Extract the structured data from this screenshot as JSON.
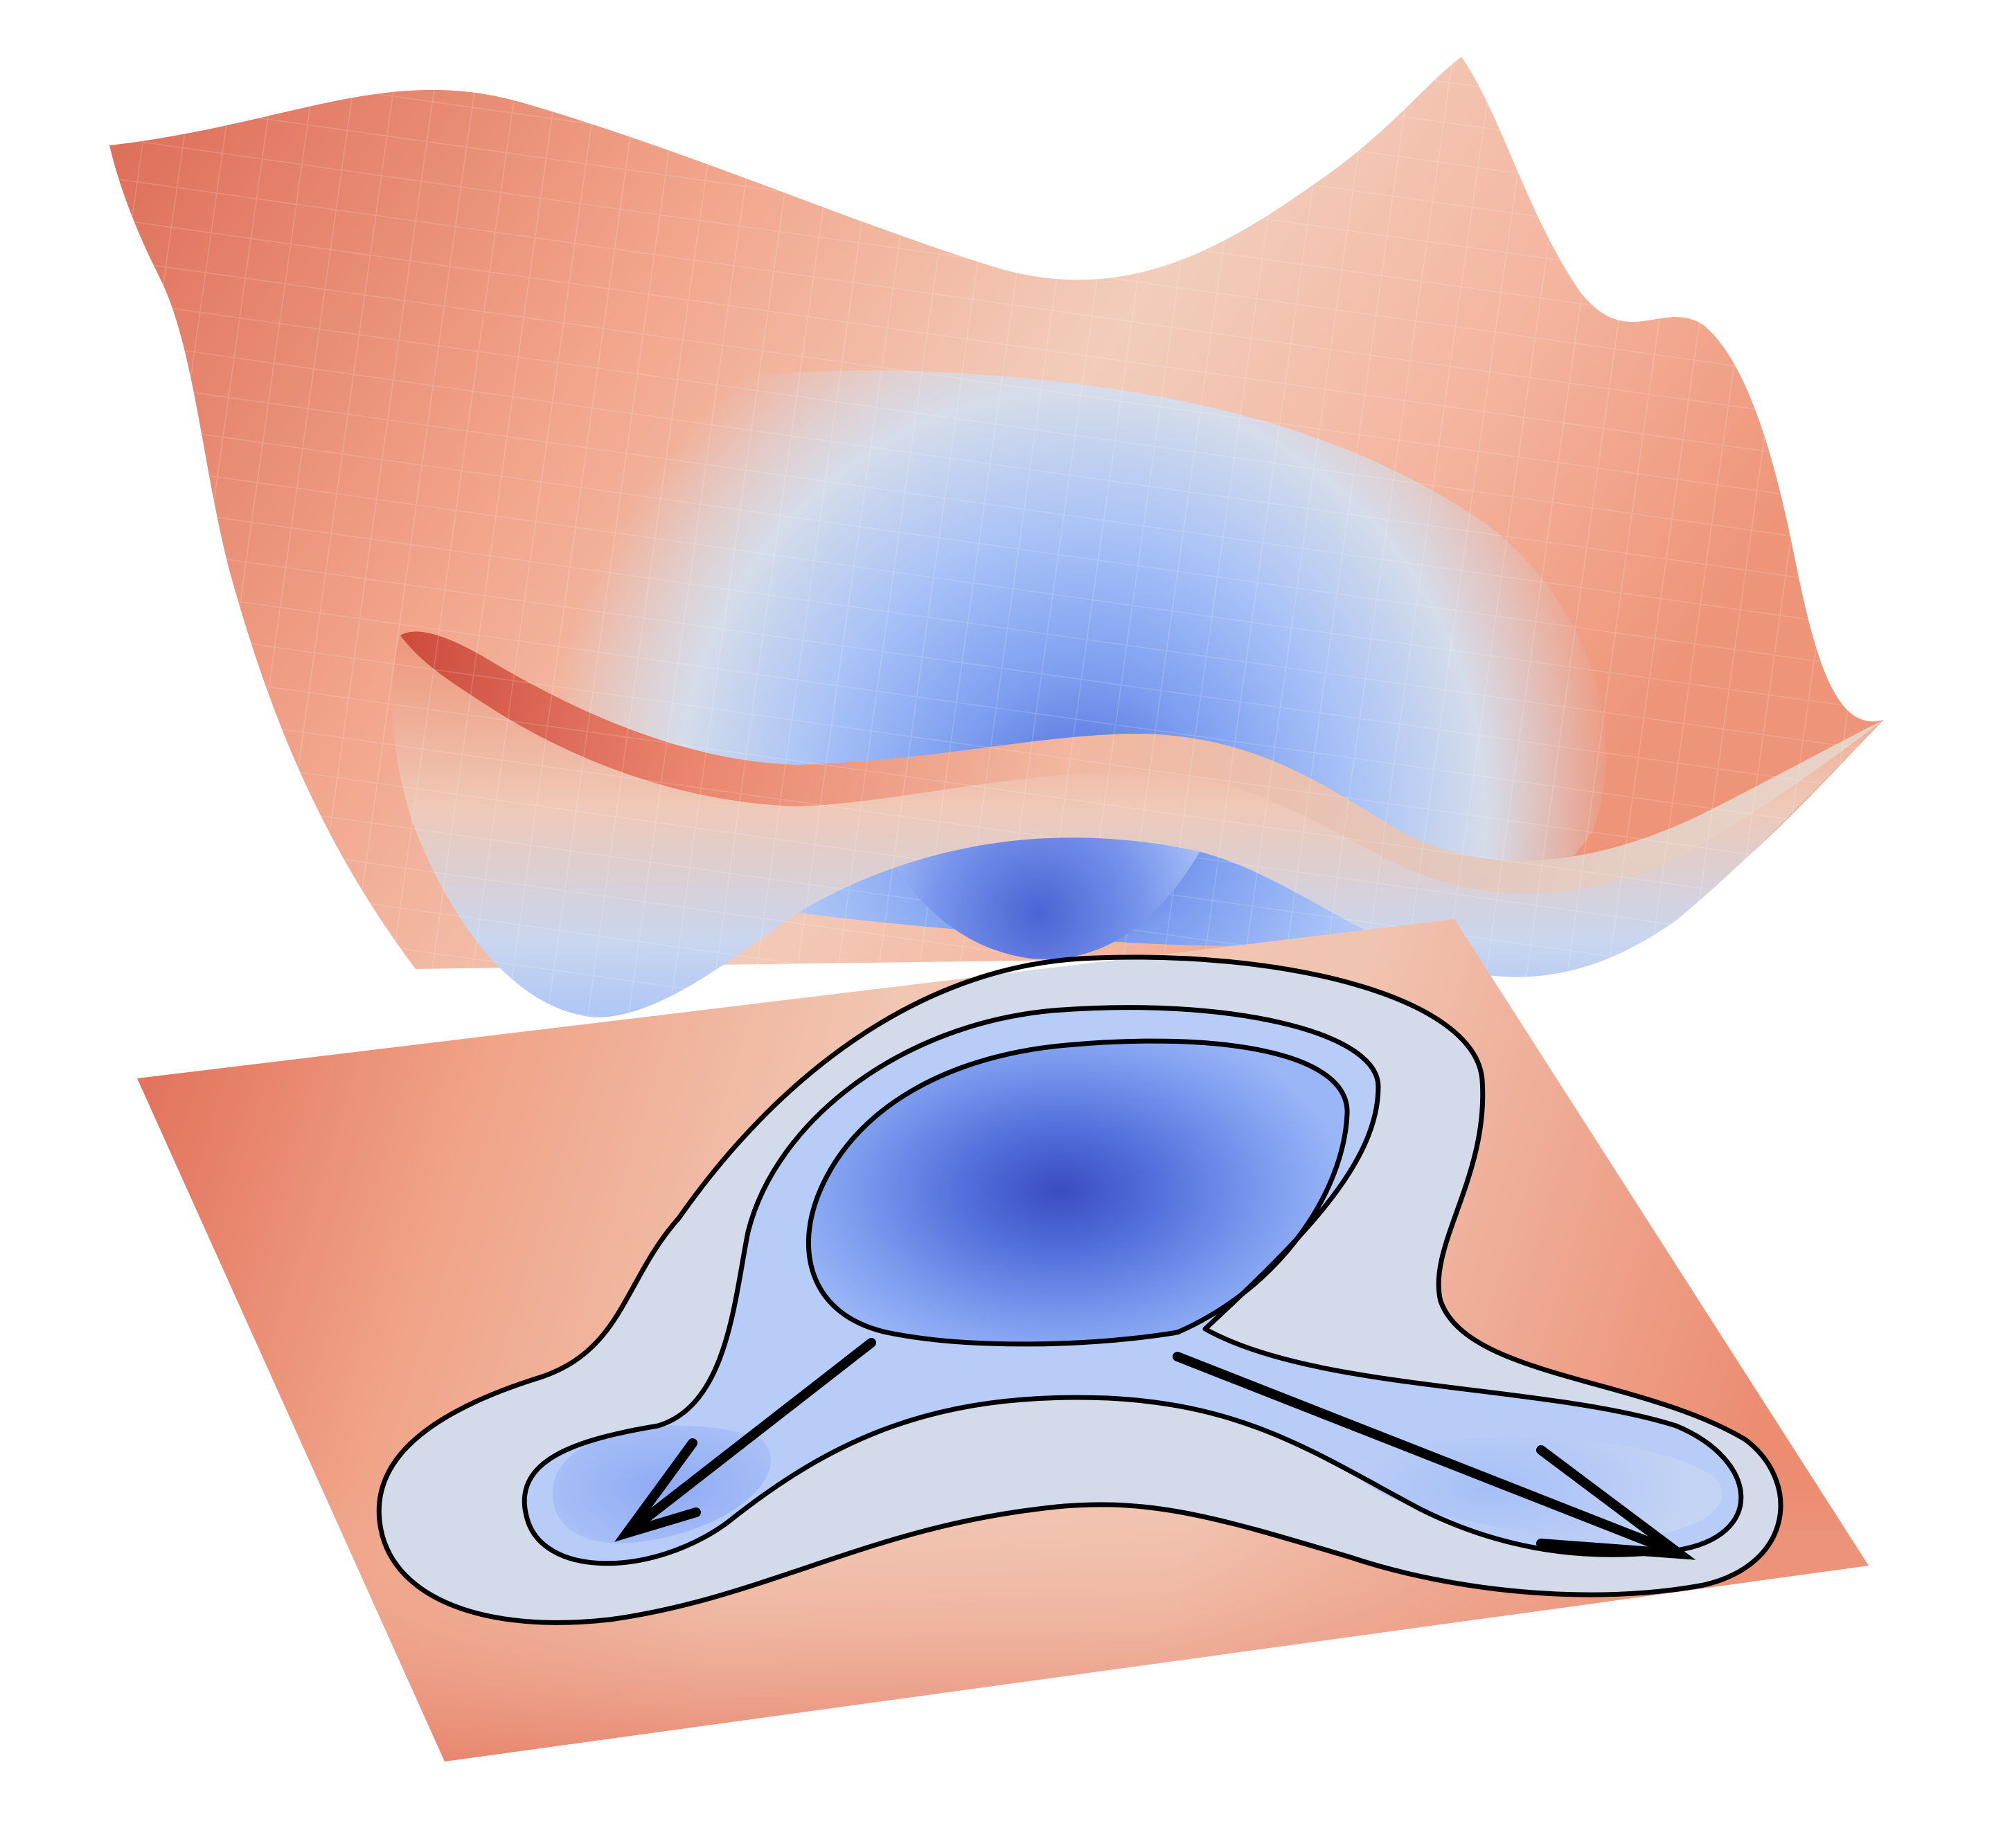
{
  "figure": {
    "description_visible_text": "",
    "colormap": {
      "name": "coolwarm",
      "low": "#3a4cc0",
      "mid": "#dddddd",
      "high": "#b40426"
    },
    "surface": {
      "grid_lines": true,
      "minima_count": 3,
      "central_minimum": "deep",
      "side_minima": "shallow"
    },
    "contour_plane": {
      "filled": true,
      "contour_line_color": "#000000",
      "arrow_color": "#000000",
      "arrow_count": 2,
      "arrows": [
        "center-to-left-minimum",
        "center-to-right-minimum"
      ]
    }
  }
}
